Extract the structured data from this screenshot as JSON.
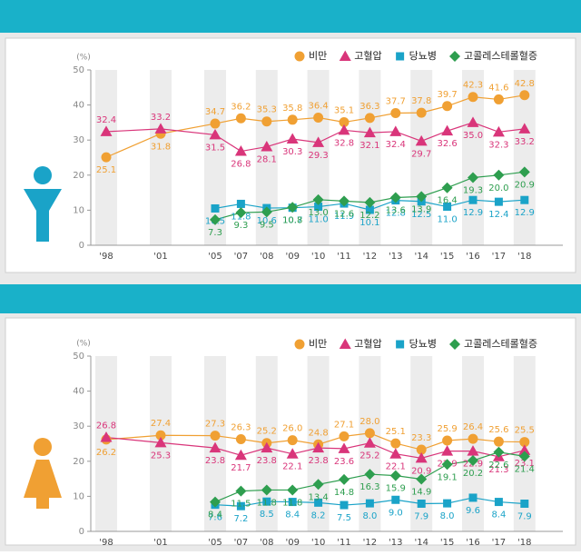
{
  "chart_data": [
    {
      "type": "line",
      "y_label": "(%)",
      "categories": [
        "'98",
        "'01",
        "'05",
        "'07",
        "'08",
        "'09",
        "'10",
        "'11",
        "'12",
        "'13",
        "'14",
        "'15",
        "'16",
        "'17",
        "'18"
      ],
      "ylim": [
        0,
        50
      ],
      "yticks": [
        0,
        10,
        20,
        30,
        40,
        50
      ],
      "series": [
        {
          "name": "비만",
          "color": "#f0a033",
          "marker": "circle",
          "values": [
            25.1,
            31.8,
            34.7,
            36.2,
            35.3,
            35.8,
            36.4,
            35.1,
            36.3,
            37.7,
            37.8,
            39.7,
            42.3,
            41.6,
            42.8
          ],
          "value_labels": [
            "25.1",
            "31.8",
            "34.7",
            "36.2",
            "35.3",
            "35.8",
            "36.4",
            "35.1",
            "36.3",
            "37.7",
            "37.8",
            "39.7",
            "42.3",
            "41.6",
            "42.8"
          ]
        },
        {
          "name": "고혈압",
          "color": "#d9357a",
          "marker": "triangle",
          "values": [
            32.4,
            33.2,
            31.5,
            26.8,
            28.1,
            30.3,
            29.3,
            32.8,
            32.1,
            32.4,
            29.7,
            32.6,
            35.0,
            32.3,
            33.2
          ],
          "value_labels": [
            "32.4",
            "33.2",
            "31.5",
            "26.8",
            "28.1",
            "30.3",
            "29.3",
            "32.8",
            "32.1",
            "32.4",
            "29.7",
            "32.6",
            "35.0",
            "32.3",
            "33.2"
          ]
        },
        {
          "name": "당뇨병",
          "color": "#1aa3c8",
          "marker": "square",
          "values": [
            null,
            null,
            10.5,
            11.8,
            10.6,
            10.7,
            11.0,
            11.9,
            10.1,
            12.8,
            12.5,
            11.0,
            12.9,
            12.4,
            12.9
          ],
          "value_labels": [
            null,
            null,
            "10.5",
            "11.8",
            "10.6",
            "10.7",
            "11.0",
            "11.9",
            "10.1",
            "12.8",
            "12.5",
            "11.0",
            "12.9",
            "12.4",
            "12.9"
          ]
        },
        {
          "name": "고콜레스테롤혈증",
          "color": "#2e9e4f",
          "marker": "diamond",
          "values": [
            null,
            null,
            7.3,
            9.3,
            9.5,
            10.8,
            13.0,
            12.6,
            12.2,
            13.6,
            13.9,
            16.4,
            19.3,
            20.0,
            20.9
          ],
          "value_labels": [
            null,
            null,
            "7.3",
            "9.3",
            "9.5",
            "10.8",
            "13.0",
            "12.6",
            "12.2",
            "13.6",
            "13.9",
            "16.4",
            "19.3",
            "20.0",
            "20.9"
          ]
        }
      ]
    },
    {
      "type": "line",
      "y_label": "(%)",
      "categories": [
        "'98",
        "'01",
        "'05",
        "'07",
        "'08",
        "'09",
        "'10",
        "'11",
        "'12",
        "'13",
        "'14",
        "'15",
        "'16",
        "'17",
        "'18"
      ],
      "ylim": [
        0,
        50
      ],
      "yticks": [
        0,
        10,
        20,
        30,
        40,
        50
      ],
      "series": [
        {
          "name": "비만",
          "color": "#f0a033",
          "marker": "circle",
          "values": [
            26.2,
            27.4,
            27.3,
            26.3,
            25.2,
            26.0,
            24.8,
            27.1,
            28.0,
            25.1,
            23.3,
            25.9,
            26.4,
            25.6,
            25.5
          ],
          "value_labels": [
            "26.2",
            "27.4",
            "27.3",
            "26.3",
            "25.2",
            "26.0",
            "24.8",
            "27.1",
            "28.0",
            "25.1",
            "23.3",
            "25.9",
            "26.4",
            "25.6",
            "25.5"
          ]
        },
        {
          "name": "고혈압",
          "color": "#d9357a",
          "marker": "triangle",
          "values": [
            26.8,
            25.3,
            23.8,
            21.7,
            23.8,
            22.1,
            23.8,
            23.6,
            25.2,
            22.1,
            20.9,
            22.9,
            22.9,
            21.3,
            23.1
          ],
          "value_labels": [
            "26.8",
            "25.3",
            "23.8",
            "21.7",
            "23.8",
            "22.1",
            "23.8",
            "23.6",
            "25.2",
            "22.1",
            "20.9",
            "22.9",
            "22.9",
            "21.3",
            "23.1"
          ]
        },
        {
          "name": "당뇨병",
          "color": "#1aa3c8",
          "marker": "square",
          "values": [
            null,
            null,
            7.6,
            7.2,
            8.5,
            8.4,
            8.2,
            7.5,
            8.0,
            9.0,
            7.9,
            8.0,
            9.6,
            8.4,
            7.9
          ],
          "value_labels": [
            null,
            null,
            "7.6",
            "7.2",
            "8.5",
            "8.4",
            "8.2",
            "7.5",
            "8.0",
            "9.0",
            "7.9",
            "8.0",
            "9.6",
            "8.4",
            "7.9"
          ]
        },
        {
          "name": "고콜레스테롤혈증",
          "color": "#2e9e4f",
          "marker": "diamond",
          "values": [
            null,
            null,
            8.4,
            11.5,
            11.8,
            11.8,
            13.4,
            14.8,
            16.3,
            15.9,
            14.9,
            19.1,
            20.2,
            22.6,
            21.4
          ],
          "value_labels": [
            null,
            null,
            "8.4",
            "11.5",
            "11.8",
            "11.8",
            "13.4",
            "14.8",
            "16.3",
            "15.9",
            "14.9",
            "19.1",
            "20.2",
            "22.6",
            "21.4"
          ]
        }
      ]
    }
  ]
}
